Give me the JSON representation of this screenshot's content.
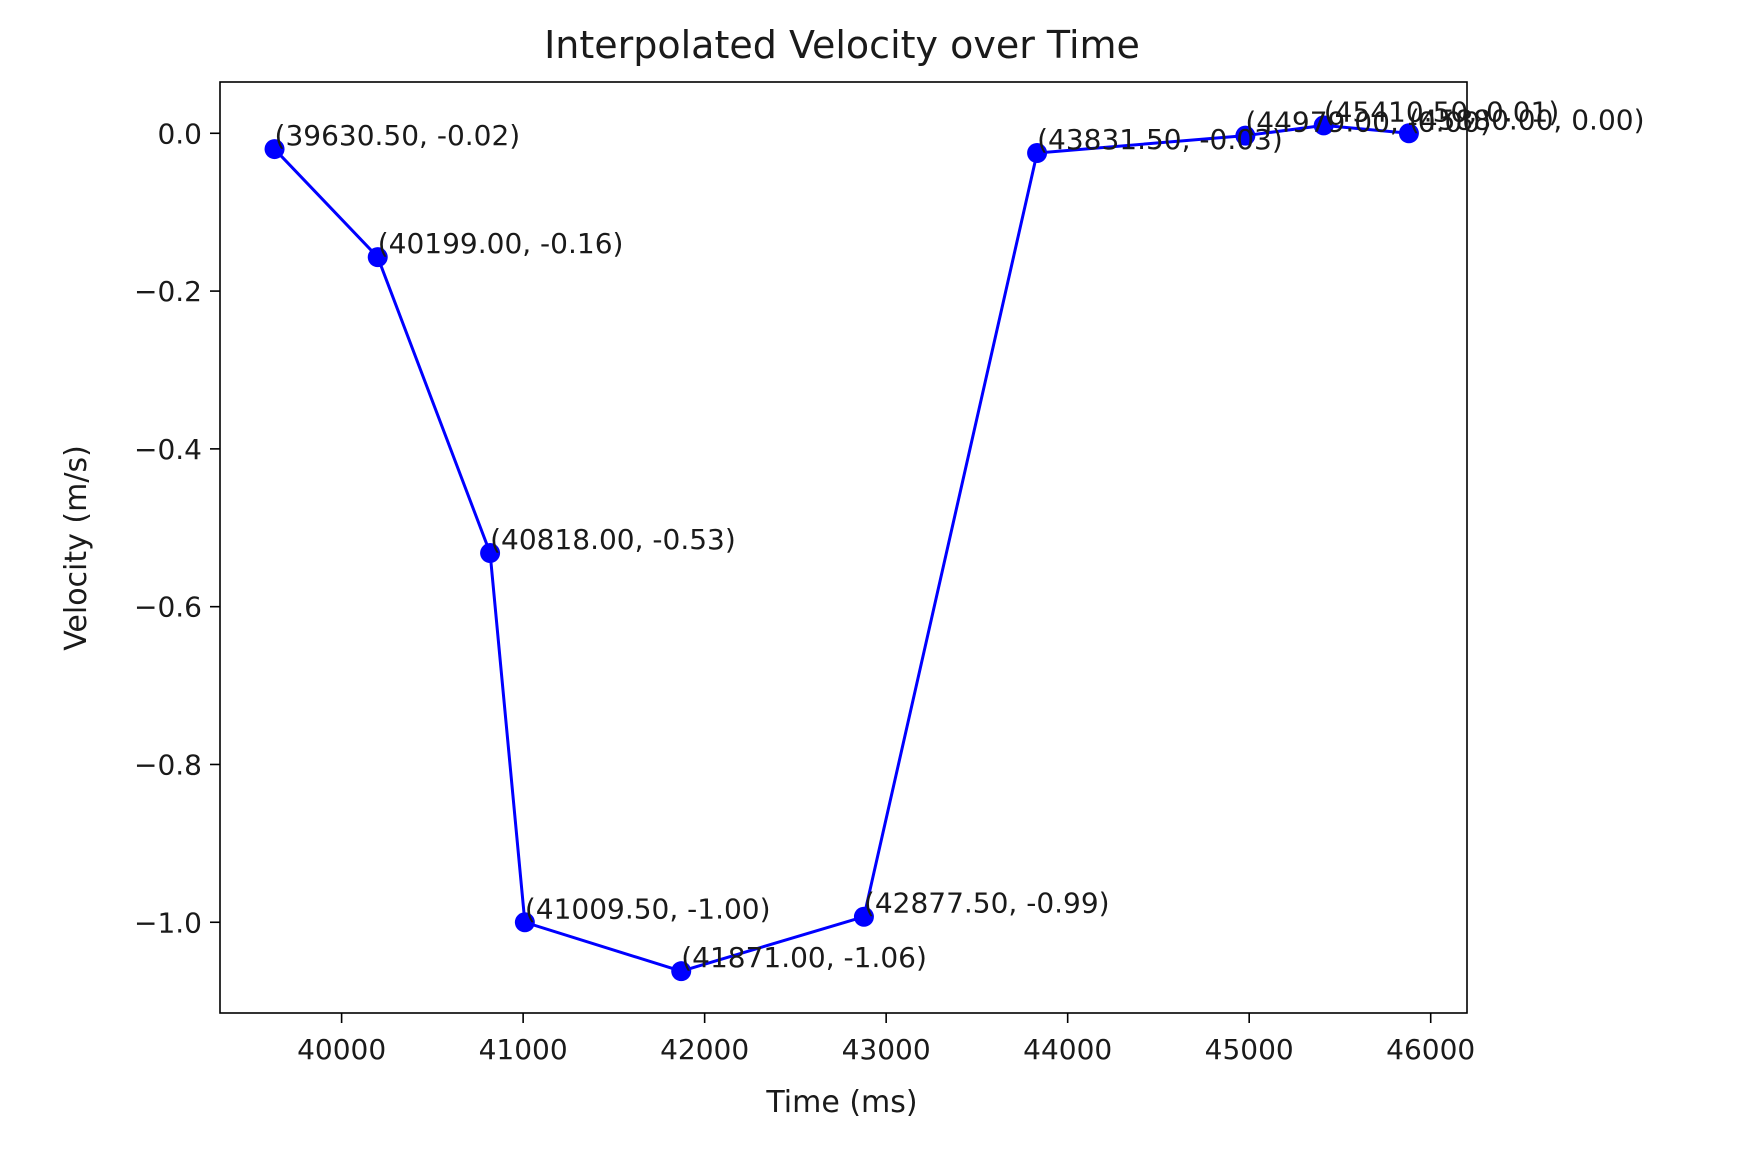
{
  "chart_data": {
    "type": "line",
    "title": "Interpolated Velocity over Time",
    "xlabel": "Time (ms)",
    "ylabel": "Velocity (m/s)",
    "xlim": [
      39330,
      46200
    ],
    "ylim": [
      -1.115,
      0.065
    ],
    "xticks": [
      40000,
      41000,
      42000,
      43000,
      44000,
      45000,
      46000
    ],
    "xtick_labels": [
      "40000",
      "41000",
      "42000",
      "43000",
      "44000",
      "45000",
      "46000"
    ],
    "yticks": [
      0.0,
      -0.2,
      -0.4,
      -0.6,
      -0.8,
      -1.0
    ],
    "ytick_labels": [
      "0.0",
      "−0.2",
      "−0.4",
      "−0.6",
      "−0.8",
      "−1.0"
    ],
    "grid": false,
    "series": [
      {
        "color": "#0000ff",
        "marker": "circle",
        "x": [
          39630.5,
          40199.0,
          40818.0,
          41009.5,
          41871.0,
          42877.5,
          43831.5,
          44979.0,
          45410.5,
          45880.0
        ],
        "y": [
          -0.02,
          -0.157,
          -0.532,
          -1.0,
          -1.062,
          -0.993,
          -0.025,
          -0.003,
          0.01,
          0.0
        ],
        "labels": [
          "(39630.50, -0.02)",
          "(40199.00, -0.16)",
          "(40818.00, -0.53)",
          "(41009.50, -1.00)",
          "(41871.00, -1.06)",
          "(42877.50, -0.99)",
          "(43831.50, -0.03)",
          "(44979.00, -0.00)",
          "(45410.50, 0.01)",
          "(45880.00, 0.00)"
        ]
      }
    ]
  }
}
